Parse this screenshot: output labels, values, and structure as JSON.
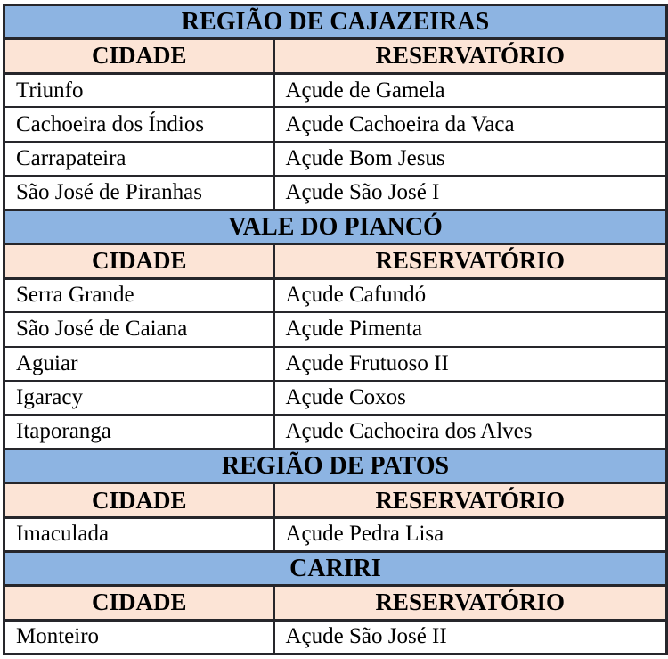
{
  "table": {
    "name": "reservatorios-por-regiao",
    "columns": [
      "CIDADE",
      "RESERVATÓRIO"
    ],
    "sections": [
      {
        "title": "REGIÃO DE CAJAZEIRAS",
        "rows": [
          {
            "city": "Triunfo",
            "reservoir": "Açude de Gamela"
          },
          {
            "city": "Cachoeira dos Índios",
            "reservoir": "Açude Cachoeira da Vaca"
          },
          {
            "city": "Carrapateira",
            "reservoir": "Açude Bom Jesus"
          },
          {
            "city": "São José de Piranhas",
            "reservoir": "Açude São José I"
          }
        ]
      },
      {
        "title": "VALE DO PIANCÓ",
        "rows": [
          {
            "city": "Serra Grande",
            "reservoir": "Açude Cafundó"
          },
          {
            "city": "São José de Caiana",
            "reservoir": "Açude Pimenta"
          },
          {
            "city": "Aguiar",
            "reservoir": "Açude Frutuoso II"
          },
          {
            "city": "Igaracy",
            "reservoir": "Açude Coxos"
          },
          {
            "city": "Itaporanga",
            "reservoir": "Açude Cachoeira dos Alves"
          }
        ]
      },
      {
        "title": "REGIÃO DE PATOS",
        "rows": [
          {
            "city": "Imaculada",
            "reservoir": "Açude Pedra Lisa"
          }
        ]
      },
      {
        "title": "CARIRI",
        "rows": [
          {
            "city": "Monteiro",
            "reservoir": "Açude São José II"
          }
        ]
      }
    ],
    "colors": {
      "section_header_bg": "#8db4e2",
      "column_header_bg": "#fce4d6",
      "border": "#26262b",
      "row_bg": "#ffffff",
      "text": "#000000"
    }
  }
}
